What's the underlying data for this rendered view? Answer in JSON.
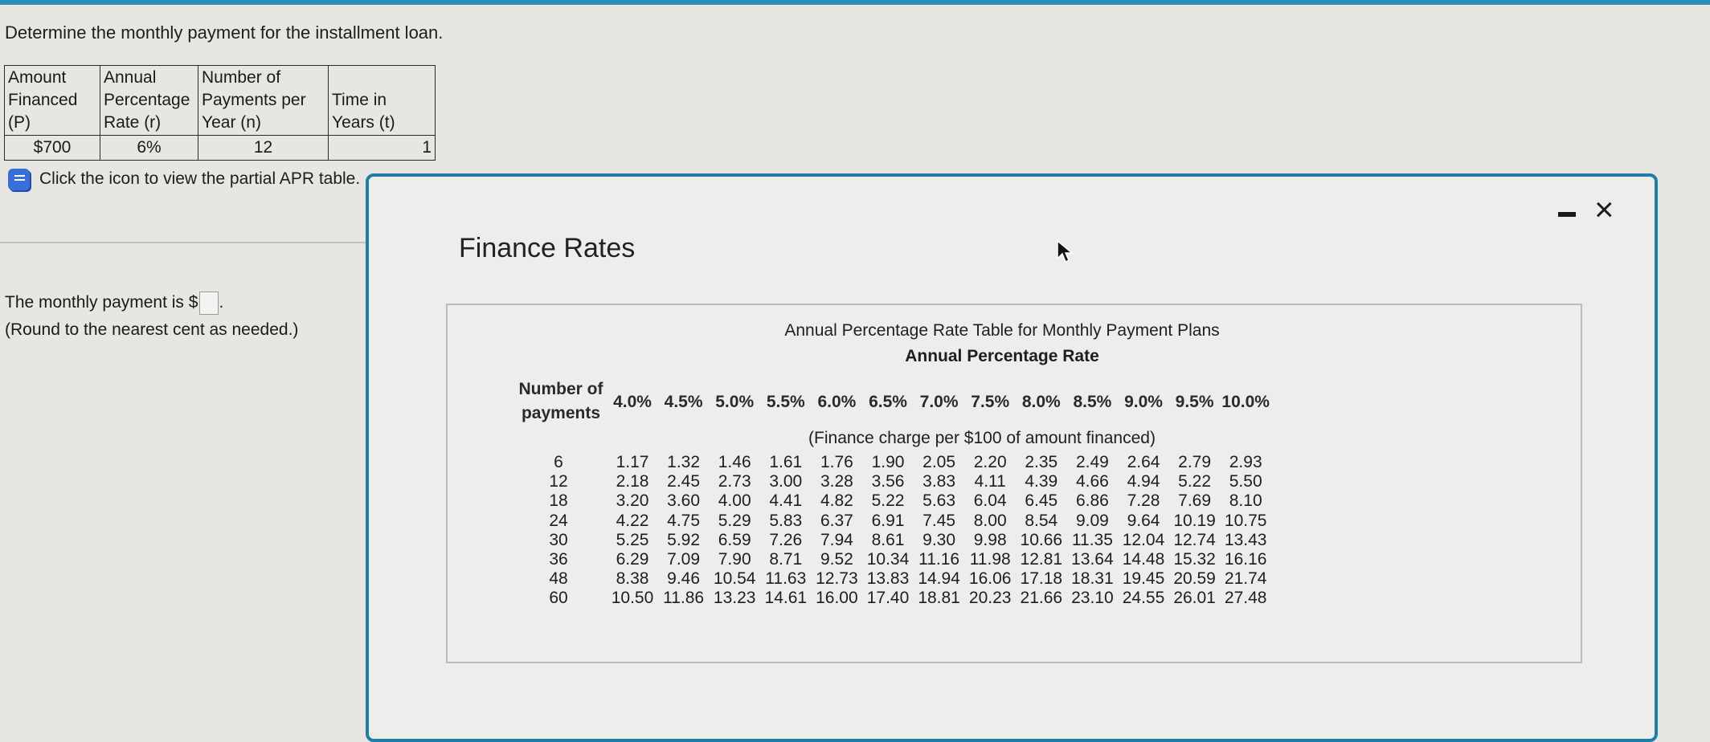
{
  "question": "Determine the monthly payment for the installment loan.",
  "given_table": {
    "headers": [
      [
        "Amount",
        "Financed (P)"
      ],
      [
        "Annual",
        "Percentage",
        "Rate (r)"
      ],
      [
        "Number of",
        "Payments per",
        "Year (n)"
      ],
      [
        "Time in",
        "Years (t)"
      ]
    ],
    "values": [
      "$700",
      "6%",
      "12",
      "1"
    ]
  },
  "apr_link_text": "Click the icon to view the partial APR table.",
  "answer": {
    "prefix": "The monthly payment is $",
    "suffix": ".",
    "value": "",
    "note": "(Round to the nearest cent as needed.)"
  },
  "modal": {
    "title": "Finance Rates",
    "minimize_label": "-",
    "close_label": "×",
    "table": {
      "caption": "Annual Percentage Rate Table for Monthly Payment Plans",
      "subcaption": "Annual Percentage Rate",
      "row_header": [
        "Number of",
        "payments"
      ],
      "rates": [
        "4.0%",
        "4.5%",
        "5.0%",
        "5.5%",
        "6.0%",
        "6.5%",
        "7.0%",
        "7.5%",
        "8.0%",
        "8.5%",
        "9.0%",
        "9.5%",
        "10.0%"
      ],
      "note": "(Finance charge per $100 of amount financed)",
      "rows": [
        {
          "n": "6",
          "values": [
            "1.17",
            "1.32",
            "1.46",
            "1.61",
            "1.76",
            "1.90",
            "2.05",
            "2.20",
            "2.35",
            "2.49",
            "2.64",
            "2.79",
            "2.93"
          ]
        },
        {
          "n": "12",
          "values": [
            "2.18",
            "2.45",
            "2.73",
            "3.00",
            "3.28",
            "3.56",
            "3.83",
            "4.11",
            "4.39",
            "4.66",
            "4.94",
            "5.22",
            "5.50"
          ]
        },
        {
          "n": "18",
          "values": [
            "3.20",
            "3.60",
            "4.00",
            "4.41",
            "4.82",
            "5.22",
            "5.63",
            "6.04",
            "6.45",
            "6.86",
            "7.28",
            "7.69",
            "8.10"
          ]
        },
        {
          "n": "24",
          "values": [
            "4.22",
            "4.75",
            "5.29",
            "5.83",
            "6.37",
            "6.91",
            "7.45",
            "8.00",
            "8.54",
            "9.09",
            "9.64",
            "10.19",
            "10.75"
          ]
        },
        {
          "n": "30",
          "values": [
            "5.25",
            "5.92",
            "6.59",
            "7.26",
            "7.94",
            "8.61",
            "9.30",
            "9.98",
            "10.66",
            "11.35",
            "12.04",
            "12.74",
            "13.43"
          ]
        },
        {
          "n": "36",
          "values": [
            "6.29",
            "7.09",
            "7.90",
            "8.71",
            "9.52",
            "10.34",
            "11.16",
            "11.98",
            "12.81",
            "13.64",
            "14.48",
            "15.32",
            "16.16"
          ]
        },
        {
          "n": "48",
          "values": [
            "8.38",
            "9.46",
            "10.54",
            "11.63",
            "12.73",
            "13.83",
            "14.94",
            "16.06",
            "17.18",
            "18.31",
            "19.45",
            "20.59",
            "21.74"
          ]
        },
        {
          "n": "60",
          "values": [
            "10.50",
            "11.86",
            "13.23",
            "14.61",
            "16.00",
            "17.40",
            "18.81",
            "20.23",
            "21.66",
            "23.10",
            "24.55",
            "26.01",
            "27.48"
          ]
        }
      ]
    }
  }
}
